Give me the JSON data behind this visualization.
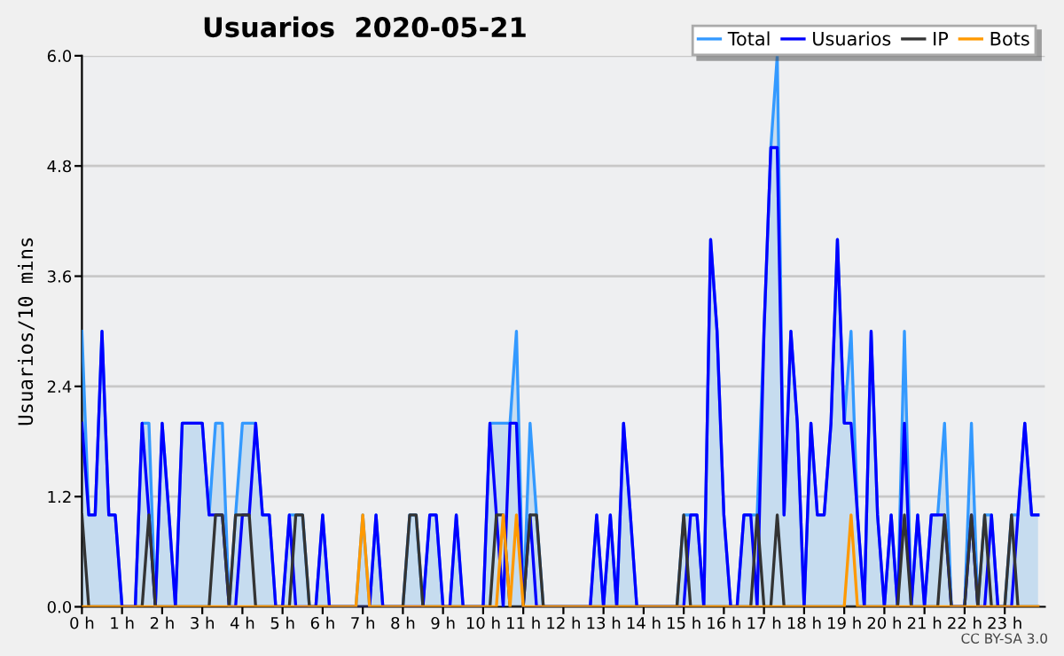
{
  "chart_data": {
    "type": "line",
    "title": "Usuarios  2020-05-21",
    "ylabel": "Usuarios/10 mins",
    "annotations": [
      "CC BY-SA 3.0"
    ],
    "x": [
      0,
      0.17,
      0.33,
      0.5,
      0.67,
      0.83,
      1,
      1.17,
      1.33,
      1.5,
      1.67,
      1.83,
      2,
      2.17,
      2.33,
      2.5,
      2.67,
      2.83,
      3,
      3.17,
      3.33,
      3.5,
      3.67,
      3.83,
      4,
      4.17,
      4.33,
      4.5,
      4.67,
      4.83,
      5,
      5.17,
      5.33,
      5.5,
      5.67,
      5.83,
      6,
      6.17,
      6.33,
      6.5,
      6.67,
      6.83,
      7,
      7.17,
      7.33,
      7.5,
      7.67,
      7.83,
      8,
      8.17,
      8.33,
      8.5,
      8.67,
      8.83,
      9,
      9.17,
      9.33,
      9.5,
      9.67,
      9.83,
      10,
      10.17,
      10.33,
      10.5,
      10.67,
      10.83,
      11,
      11.17,
      11.33,
      11.5,
      11.67,
      11.83,
      12,
      12.17,
      12.33,
      12.5,
      12.67,
      12.83,
      13,
      13.17,
      13.33,
      13.5,
      13.67,
      13.83,
      14,
      14.17,
      14.33,
      14.5,
      14.67,
      14.83,
      15,
      15.17,
      15.33,
      15.5,
      15.67,
      15.83,
      16,
      16.17,
      16.33,
      16.5,
      16.67,
      16.83,
      17,
      17.17,
      17.33,
      17.5,
      17.67,
      17.83,
      18,
      18.17,
      18.33,
      18.5,
      18.67,
      18.83,
      19,
      19.17,
      19.33,
      19.5,
      19.67,
      19.83,
      20,
      20.17,
      20.33,
      20.5,
      20.67,
      20.83,
      21,
      21.17,
      21.33,
      21.5,
      21.67,
      21.83,
      22,
      22.17,
      22.33,
      22.5,
      22.67,
      22.83,
      23,
      23.17,
      23.33,
      23.5,
      23.67,
      23.83
    ],
    "series": [
      {
        "name": "Total",
        "type": "area",
        "color": "#3399ff",
        "values": [
          3,
          1,
          1,
          3,
          1,
          1,
          0,
          0,
          0,
          2,
          2,
          0,
          2,
          1,
          0,
          2,
          2,
          2,
          2,
          1,
          2,
          2,
          0,
          1,
          2,
          2,
          2,
          1,
          1,
          0,
          0,
          1,
          1,
          1,
          0,
          0,
          1,
          0,
          0,
          0,
          0,
          0,
          1,
          0,
          1,
          0,
          0,
          0,
          0,
          1,
          1,
          0,
          1,
          1,
          0,
          0,
          1,
          0,
          0,
          0,
          0,
          2,
          2,
          2,
          2,
          3,
          0,
          2,
          1,
          0,
          0,
          0,
          0,
          0,
          0,
          0,
          0,
          1,
          0,
          1,
          0,
          2,
          1,
          0,
          0,
          0,
          0,
          0,
          0,
          0,
          1,
          1,
          1,
          0,
          4,
          3,
          1,
          0,
          0,
          1,
          1,
          1,
          3,
          5,
          6,
          1,
          3,
          2,
          0,
          2,
          1,
          1,
          2,
          4,
          2,
          3,
          1,
          0,
          3,
          1,
          0,
          1,
          0,
          3,
          0,
          1,
          0,
          1,
          1,
          2,
          0,
          0,
          0,
          2,
          0,
          1,
          1,
          0,
          0,
          1,
          1,
          2,
          1,
          1
        ]
      },
      {
        "name": "Usuarios",
        "type": "line",
        "color": "#0000ff",
        "values": [
          2,
          1,
          1,
          3,
          1,
          1,
          0,
          0,
          0,
          2,
          1,
          0,
          2,
          1,
          0,
          2,
          2,
          2,
          2,
          1,
          1,
          1,
          0,
          0,
          1,
          1,
          2,
          1,
          1,
          0,
          0,
          1,
          0,
          0,
          0,
          0,
          1,
          0,
          0,
          0,
          0,
          0,
          0,
          0,
          1,
          0,
          0,
          0,
          0,
          0,
          0,
          0,
          1,
          1,
          0,
          0,
          1,
          0,
          0,
          0,
          0,
          2,
          1,
          0,
          2,
          2,
          0,
          1,
          0,
          0,
          0,
          0,
          0,
          0,
          0,
          0,
          0,
          1,
          0,
          1,
          0,
          2,
          1,
          0,
          0,
          0,
          0,
          0,
          0,
          0,
          0,
          1,
          1,
          0,
          4,
          3,
          1,
          0,
          0,
          1,
          1,
          0,
          3,
          5,
          5,
          1,
          3,
          2,
          0,
          2,
          1,
          1,
          2,
          4,
          2,
          2,
          1,
          0,
          3,
          1,
          0,
          1,
          0,
          2,
          0,
          1,
          0,
          1,
          1,
          1,
          0,
          0,
          0,
          1,
          0,
          0,
          1,
          0,
          0,
          0,
          1,
          2,
          1,
          1
        ]
      },
      {
        "name": "IP",
        "type": "line",
        "color": "#333333",
        "values": [
          1,
          0,
          0,
          0,
          0,
          0,
          0,
          0,
          0,
          0,
          1,
          0,
          0,
          0,
          0,
          0,
          0,
          0,
          0,
          0,
          1,
          1,
          0,
          1,
          1,
          1,
          0,
          0,
          0,
          0,
          0,
          0,
          1,
          1,
          0,
          0,
          0,
          0,
          0,
          0,
          0,
          0,
          0,
          0,
          0,
          0,
          0,
          0,
          0,
          1,
          1,
          0,
          0,
          0,
          0,
          0,
          0,
          0,
          0,
          0,
          0,
          0,
          1,
          1,
          0,
          0,
          0,
          1,
          1,
          0,
          0,
          0,
          0,
          0,
          0,
          0,
          0,
          0,
          0,
          0,
          0,
          0,
          0,
          0,
          0,
          0,
          0,
          0,
          0,
          0,
          1,
          0,
          0,
          0,
          0,
          0,
          0,
          0,
          0,
          0,
          0,
          1,
          0,
          0,
          1,
          0,
          0,
          0,
          0,
          0,
          0,
          0,
          0,
          0,
          0,
          0,
          0,
          0,
          0,
          0,
          0,
          0,
          0,
          1,
          0,
          0,
          0,
          0,
          0,
          1,
          0,
          0,
          0,
          1,
          0,
          1,
          0,
          0,
          0,
          1,
          0,
          0,
          0,
          0
        ]
      },
      {
        "name": "Bots",
        "type": "line",
        "color": "#ff9900",
        "values": [
          0,
          0,
          0,
          0,
          0,
          0,
          0,
          0,
          0,
          0,
          0,
          0,
          0,
          0,
          0,
          0,
          0,
          0,
          0,
          0,
          0,
          0,
          0,
          0,
          0,
          0,
          0,
          0,
          0,
          0,
          0,
          0,
          0,
          0,
          0,
          0,
          0,
          0,
          0,
          0,
          0,
          0,
          1,
          0,
          0,
          0,
          0,
          0,
          0,
          0,
          0,
          0,
          0,
          0,
          0,
          0,
          0,
          0,
          0,
          0,
          0,
          0,
          0,
          1,
          0,
          1,
          0,
          0,
          0,
          0,
          0,
          0,
          0,
          0,
          0,
          0,
          0,
          0,
          0,
          0,
          0,
          0,
          0,
          0,
          0,
          0,
          0,
          0,
          0,
          0,
          0,
          0,
          0,
          0,
          0,
          0,
          0,
          0,
          0,
          0,
          0,
          0,
          0,
          0,
          0,
          0,
          0,
          0,
          0,
          0,
          0,
          0,
          0,
          0,
          0,
          1,
          0,
          0,
          0,
          0,
          0,
          0,
          0,
          0,
          0,
          0,
          0,
          0,
          0,
          0,
          0,
          0,
          0,
          0,
          0,
          0,
          0,
          0,
          0,
          0,
          0,
          0,
          0,
          0
        ]
      }
    ],
    "xlim": [
      0,
      24
    ],
    "xticks": [
      {
        "value": 0,
        "label": "0 h"
      },
      {
        "value": 1,
        "label": "1 h"
      },
      {
        "value": 2,
        "label": "2 h"
      },
      {
        "value": 3,
        "label": "3 h"
      },
      {
        "value": 4,
        "label": "4 h"
      },
      {
        "value": 5,
        "label": "5 h"
      },
      {
        "value": 6,
        "label": "6 h"
      },
      {
        "value": 7,
        "label": "7 h"
      },
      {
        "value": 8,
        "label": "8 h"
      },
      {
        "value": 9,
        "label": "9 h"
      },
      {
        "value": 10,
        "label": "10 h"
      },
      {
        "value": 11,
        "label": "11 h"
      },
      {
        "value": 12,
        "label": "12 h"
      },
      {
        "value": 13,
        "label": "13 h"
      },
      {
        "value": 14,
        "label": "14 h"
      },
      {
        "value": 15,
        "label": "15 h"
      },
      {
        "value": 16,
        "label": "16 h"
      },
      {
        "value": 17,
        "label": "17 h"
      },
      {
        "value": 18,
        "label": "18 h"
      },
      {
        "value": 19,
        "label": "19 h"
      },
      {
        "value": 20,
        "label": "20 h"
      },
      {
        "value": 21,
        "label": "21 h"
      },
      {
        "value": 22,
        "label": "22 h"
      },
      {
        "value": 23,
        "label": "23 h"
      }
    ],
    "ylim": [
      0,
      6
    ],
    "yticks": [
      {
        "value": 0,
        "label": "0.0"
      },
      {
        "value": 1.2,
        "label": "1.2"
      },
      {
        "value": 2.4,
        "label": "2.4"
      },
      {
        "value": 3.6,
        "label": "3.6"
      },
      {
        "value": 4.8,
        "label": "4.8"
      },
      {
        "value": 6,
        "label": "6.0"
      }
    ],
    "grid": "y",
    "legend": "top right",
    "marker": "none",
    "line_style": "solid"
  }
}
